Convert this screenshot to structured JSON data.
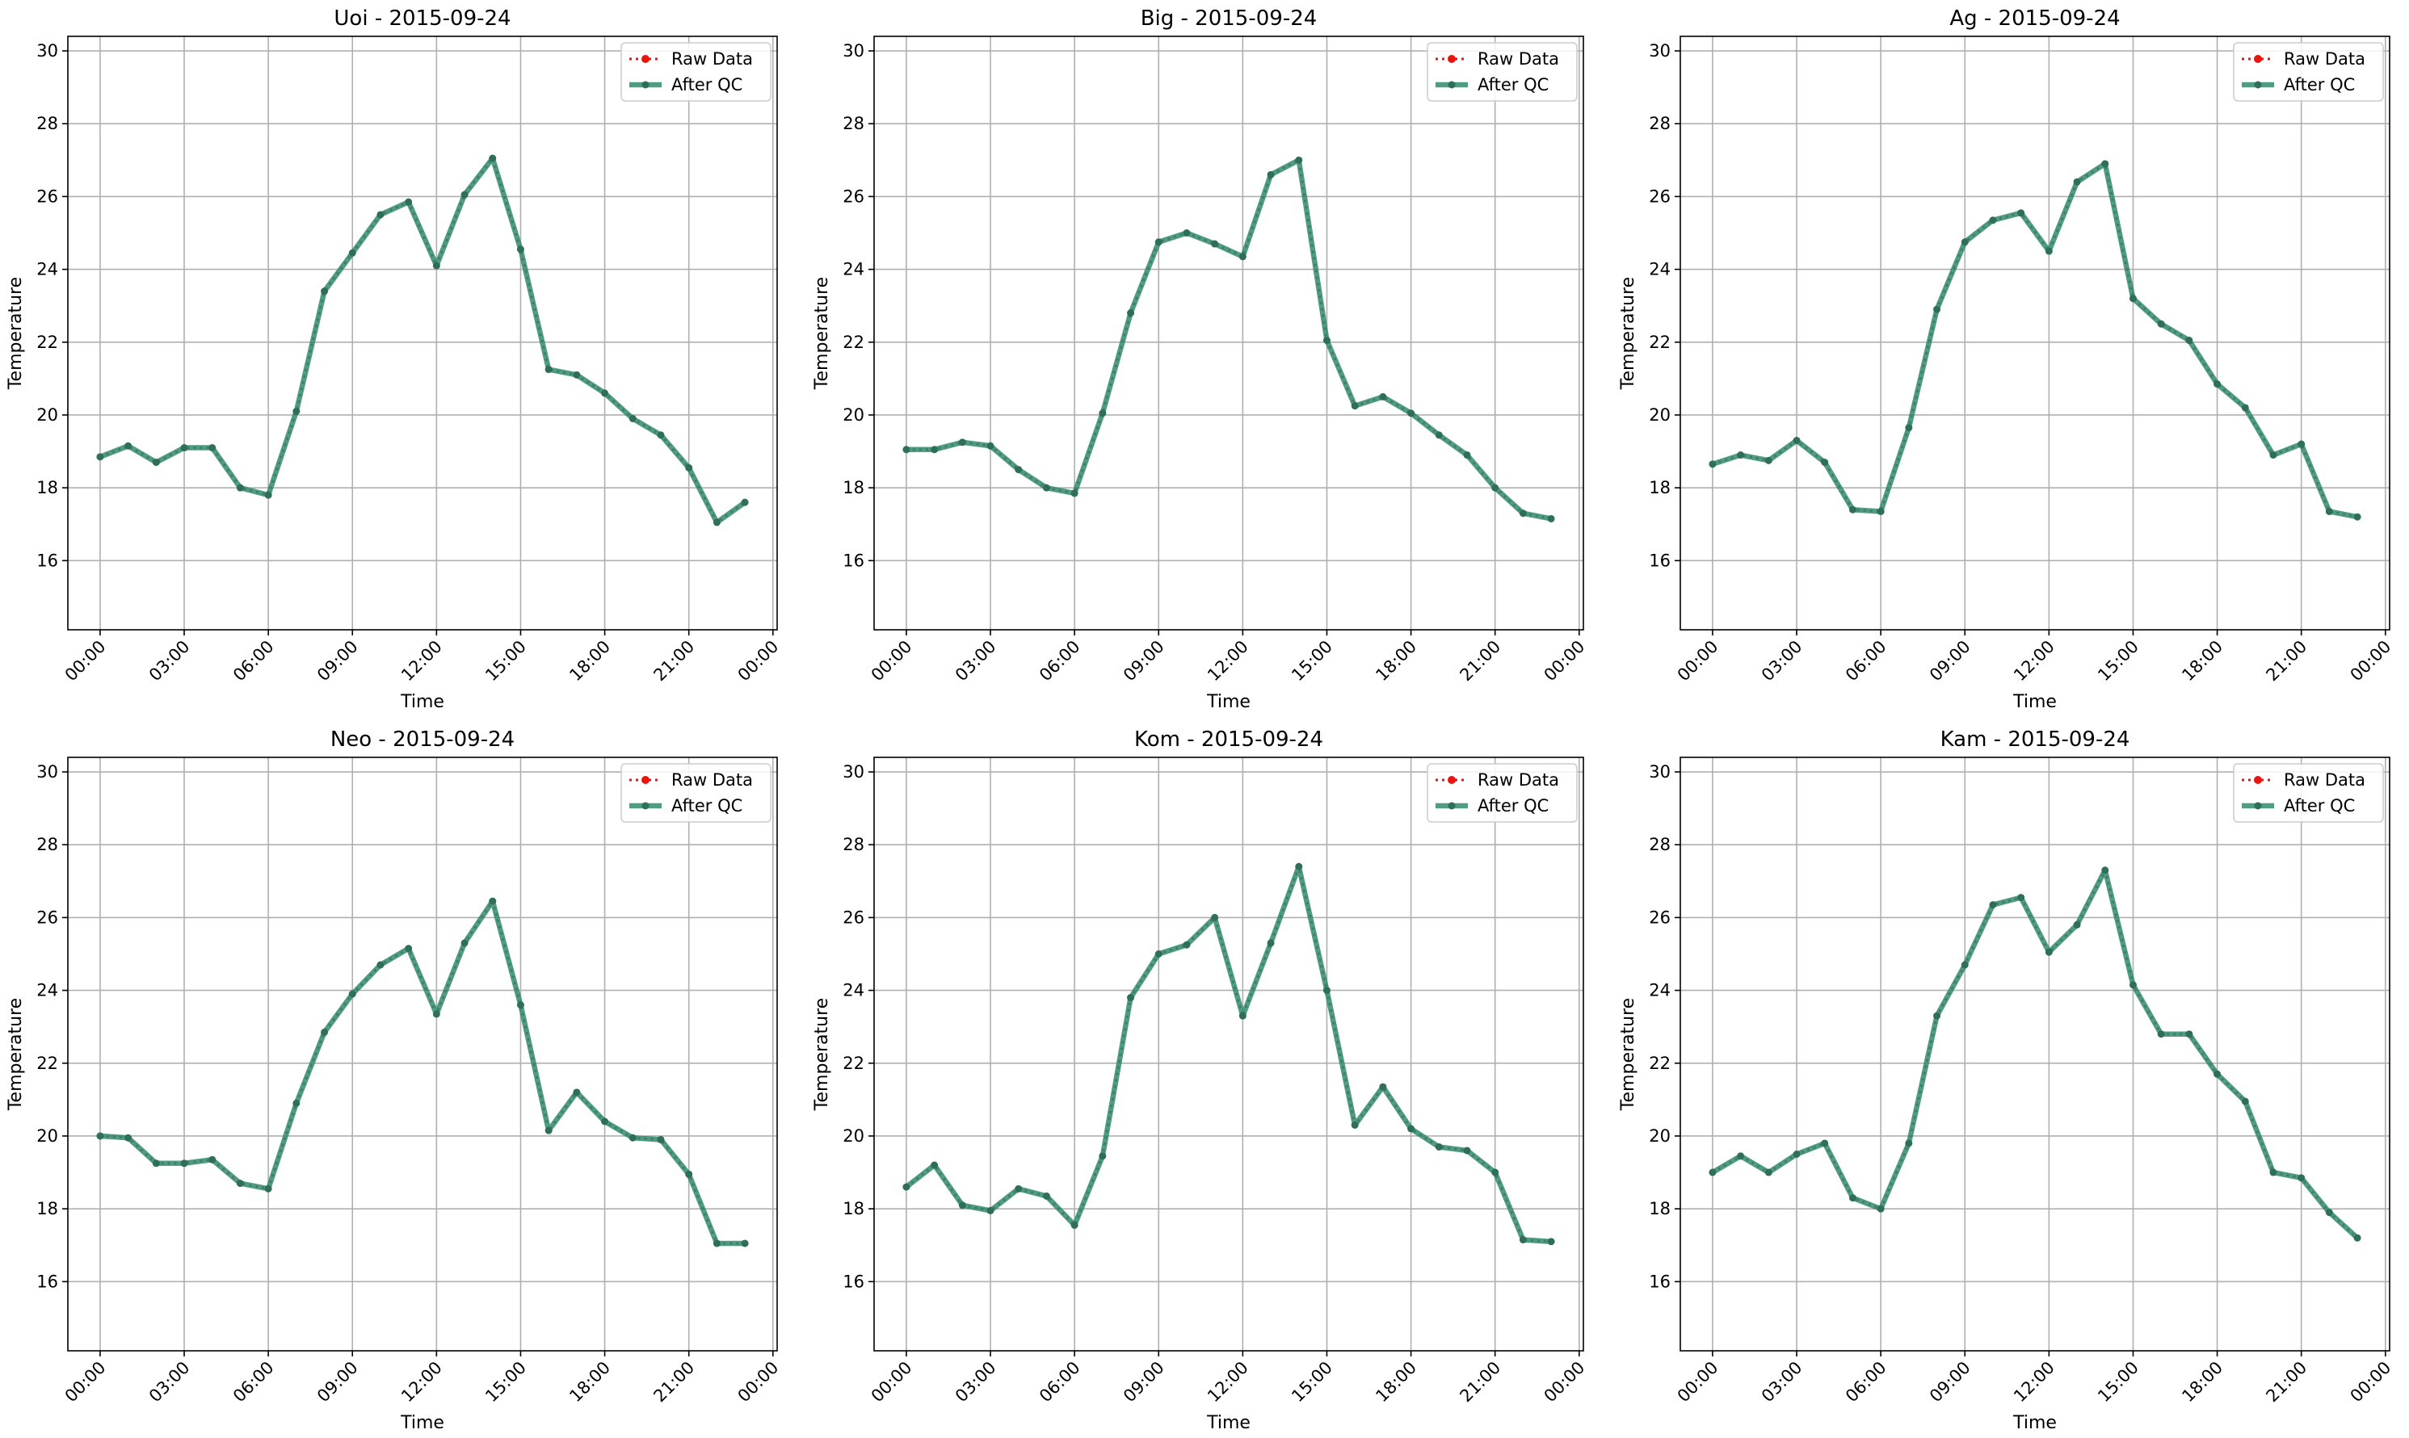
{
  "colors": {
    "raw": "#e8150f",
    "qc": "#2e8b6e",
    "grid": "#b0b0b0",
    "axes": "#000000"
  },
  "chart_data": [
    {
      "type": "line",
      "title": "Uoi - 2015-09-24",
      "xlabel": "Time",
      "ylabel": "Temperature",
      "x_ticks": [
        "00:00",
        "03:00",
        "06:00",
        "09:00",
        "12:00",
        "15:00",
        "18:00",
        "21:00",
        "00:00"
      ],
      "x_tick_hours": [
        0,
        3,
        6,
        9,
        12,
        15,
        18,
        21,
        24
      ],
      "xlim": [
        -1.15,
        24.15
      ],
      "ylim": [
        14.1,
        30.4
      ],
      "y_ticks": [
        16,
        18,
        20,
        22,
        24,
        26,
        28,
        30
      ],
      "grid": true,
      "legend": "top-right",
      "legend_entries": [
        "Raw Data",
        "After QC"
      ],
      "x": [
        0,
        1,
        2,
        3,
        4,
        5,
        6,
        7,
        8,
        9,
        10,
        11,
        12,
        13,
        14,
        15,
        16,
        17,
        18,
        19,
        20,
        21,
        22,
        23
      ],
      "series": [
        {
          "name": "Raw Data",
          "values": [
            18.85,
            19.15,
            18.7,
            19.1,
            19.1,
            18.0,
            17.8,
            20.1,
            23.4,
            24.45,
            25.5,
            25.85,
            24.1,
            26.05,
            27.05,
            24.55,
            21.25,
            21.1,
            20.6,
            19.9,
            19.45,
            18.55,
            17.05,
            17.6
          ]
        },
        {
          "name": "After QC",
          "values": [
            18.85,
            19.15,
            18.7,
            19.1,
            19.1,
            18.0,
            17.8,
            20.1,
            23.4,
            24.45,
            25.5,
            25.85,
            24.1,
            26.05,
            27.05,
            24.55,
            21.25,
            21.1,
            20.6,
            19.9,
            19.45,
            18.55,
            17.05,
            17.6
          ]
        }
      ]
    },
    {
      "type": "line",
      "title": "Big - 2015-09-24",
      "xlabel": "Time",
      "ylabel": "Temperature",
      "x_ticks": [
        "00:00",
        "03:00",
        "06:00",
        "09:00",
        "12:00",
        "15:00",
        "18:00",
        "21:00",
        "00:00"
      ],
      "x_tick_hours": [
        0,
        3,
        6,
        9,
        12,
        15,
        18,
        21,
        24
      ],
      "xlim": [
        -1.15,
        24.15
      ],
      "ylim": [
        14.1,
        30.4
      ],
      "y_ticks": [
        16,
        18,
        20,
        22,
        24,
        26,
        28,
        30
      ],
      "grid": true,
      "legend": "top-right",
      "legend_entries": [
        "Raw Data",
        "After QC"
      ],
      "x": [
        0,
        1,
        2,
        3,
        4,
        5,
        6,
        7,
        8,
        9,
        10,
        11,
        12,
        13,
        14,
        15,
        16,
        17,
        18,
        19,
        20,
        21,
        22,
        23
      ],
      "series": [
        {
          "name": "Raw Data",
          "values": [
            19.05,
            19.05,
            19.25,
            19.15,
            18.5,
            18.0,
            17.85,
            20.05,
            22.8,
            24.75,
            25.0,
            24.7,
            24.35,
            26.6,
            27.0,
            22.05,
            20.25,
            20.5,
            20.05,
            19.45,
            18.9,
            18.0,
            17.3,
            17.15
          ]
        },
        {
          "name": "After QC",
          "values": [
            19.05,
            19.05,
            19.25,
            19.15,
            18.5,
            18.0,
            17.85,
            20.05,
            22.8,
            24.75,
            25.0,
            24.7,
            24.35,
            26.6,
            27.0,
            22.05,
            20.25,
            20.5,
            20.05,
            19.45,
            18.9,
            18.0,
            17.3,
            17.15
          ]
        }
      ]
    },
    {
      "type": "line",
      "title": "Ag - 2015-09-24",
      "xlabel": "Time",
      "ylabel": "Temperature",
      "x_ticks": [
        "00:00",
        "03:00",
        "06:00",
        "09:00",
        "12:00",
        "15:00",
        "18:00",
        "21:00",
        "00:00"
      ],
      "x_tick_hours": [
        0,
        3,
        6,
        9,
        12,
        15,
        18,
        21,
        24
      ],
      "xlim": [
        -1.15,
        24.15
      ],
      "ylim": [
        14.1,
        30.4
      ],
      "y_ticks": [
        16,
        18,
        20,
        22,
        24,
        26,
        28,
        30
      ],
      "grid": true,
      "legend": "top-right",
      "legend_entries": [
        "Raw Data",
        "After QC"
      ],
      "x": [
        0,
        1,
        2,
        3,
        4,
        5,
        6,
        7,
        8,
        9,
        10,
        11,
        12,
        13,
        14,
        15,
        16,
        17,
        18,
        19,
        20,
        21,
        22,
        23
      ],
      "series": [
        {
          "name": "Raw Data",
          "values": [
            18.65,
            18.9,
            18.75,
            19.3,
            18.7,
            17.4,
            17.35,
            19.65,
            22.9,
            24.75,
            25.35,
            25.55,
            24.5,
            26.4,
            26.9,
            23.2,
            22.5,
            22.05,
            20.85,
            20.2,
            18.9,
            19.2,
            17.35,
            17.2
          ]
        },
        {
          "name": "After QC",
          "values": [
            18.65,
            18.9,
            18.75,
            19.3,
            18.7,
            17.4,
            17.35,
            19.65,
            22.9,
            24.75,
            25.35,
            25.55,
            24.5,
            26.4,
            26.9,
            23.2,
            22.5,
            22.05,
            20.85,
            20.2,
            18.9,
            19.2,
            17.35,
            17.2
          ]
        }
      ]
    },
    {
      "type": "line",
      "title": "Neo - 2015-09-24",
      "xlabel": "Time",
      "ylabel": "Temperature",
      "x_ticks": [
        "00:00",
        "03:00",
        "06:00",
        "09:00",
        "12:00",
        "15:00",
        "18:00",
        "21:00",
        "00:00"
      ],
      "x_tick_hours": [
        0,
        3,
        6,
        9,
        12,
        15,
        18,
        21,
        24
      ],
      "xlim": [
        -1.15,
        24.15
      ],
      "ylim": [
        14.1,
        30.4
      ],
      "y_ticks": [
        16,
        18,
        20,
        22,
        24,
        26,
        28,
        30
      ],
      "grid": true,
      "legend": "top-right",
      "legend_entries": [
        "Raw Data",
        "After QC"
      ],
      "x": [
        0,
        1,
        2,
        3,
        4,
        5,
        6,
        7,
        8,
        9,
        10,
        11,
        12,
        13,
        14,
        15,
        16,
        17,
        18,
        19,
        20,
        21,
        22,
        23
      ],
      "series": [
        {
          "name": "Raw Data",
          "values": [
            20.0,
            19.95,
            19.25,
            19.25,
            19.35,
            18.7,
            18.55,
            20.9,
            22.85,
            23.9,
            24.7,
            25.15,
            23.35,
            25.3,
            26.45,
            23.6,
            20.15,
            21.2,
            20.4,
            19.95,
            19.9,
            18.95,
            17.05,
            17.05
          ]
        },
        {
          "name": "After QC",
          "values": [
            20.0,
            19.95,
            19.25,
            19.25,
            19.35,
            18.7,
            18.55,
            20.9,
            22.85,
            23.9,
            24.7,
            25.15,
            23.35,
            25.3,
            26.45,
            23.6,
            20.15,
            21.2,
            20.4,
            19.95,
            19.9,
            18.95,
            17.05,
            17.05
          ]
        }
      ]
    },
    {
      "type": "line",
      "title": "Kom - 2015-09-24",
      "xlabel": "Time",
      "ylabel": "Temperature",
      "x_ticks": [
        "00:00",
        "03:00",
        "06:00",
        "09:00",
        "12:00",
        "15:00",
        "18:00",
        "21:00",
        "00:00"
      ],
      "x_tick_hours": [
        0,
        3,
        6,
        9,
        12,
        15,
        18,
        21,
        24
      ],
      "xlim": [
        -1.15,
        24.15
      ],
      "ylim": [
        14.1,
        30.4
      ],
      "y_ticks": [
        16,
        18,
        20,
        22,
        24,
        26,
        28,
        30
      ],
      "grid": true,
      "legend": "top-right",
      "legend_entries": [
        "Raw Data",
        "After QC"
      ],
      "x": [
        0,
        1,
        2,
        3,
        4,
        5,
        6,
        7,
        8,
        9,
        10,
        11,
        12,
        13,
        14,
        15,
        16,
        17,
        18,
        19,
        20,
        21,
        22,
        23
      ],
      "series": [
        {
          "name": "Raw Data",
          "values": [
            18.6,
            19.2,
            18.1,
            17.95,
            18.55,
            18.35,
            17.55,
            19.45,
            23.8,
            25.0,
            25.25,
            26.0,
            23.3,
            25.3,
            27.4,
            24.0,
            20.3,
            21.35,
            20.2,
            19.7,
            19.6,
            19.0,
            17.15,
            17.1
          ]
        },
        {
          "name": "After QC",
          "values": [
            18.6,
            19.2,
            18.1,
            17.95,
            18.55,
            18.35,
            17.55,
            19.45,
            23.8,
            25.0,
            25.25,
            26.0,
            23.3,
            25.3,
            27.4,
            24.0,
            20.3,
            21.35,
            20.2,
            19.7,
            19.6,
            19.0,
            17.15,
            17.1
          ]
        }
      ]
    },
    {
      "type": "line",
      "title": "Kam - 2015-09-24",
      "xlabel": "Time",
      "ylabel": "Temperature",
      "x_ticks": [
        "00:00",
        "03:00",
        "06:00",
        "09:00",
        "12:00",
        "15:00",
        "18:00",
        "21:00",
        "00:00"
      ],
      "x_tick_hours": [
        0,
        3,
        6,
        9,
        12,
        15,
        18,
        21,
        24
      ],
      "xlim": [
        -1.15,
        24.15
      ],
      "ylim": [
        14.1,
        30.4
      ],
      "y_ticks": [
        16,
        18,
        20,
        22,
        24,
        26,
        28,
        30
      ],
      "grid": true,
      "legend": "top-right",
      "legend_entries": [
        "Raw Data",
        "After QC"
      ],
      "x": [
        0,
        1,
        2,
        3,
        4,
        5,
        6,
        7,
        8,
        9,
        10,
        11,
        12,
        13,
        14,
        15,
        16,
        17,
        18,
        19,
        20,
        21,
        22,
        23
      ],
      "series": [
        {
          "name": "Raw Data",
          "values": [
            19.0,
            19.45,
            19.0,
            19.5,
            19.8,
            18.3,
            18.0,
            19.8,
            23.3,
            24.7,
            26.35,
            26.55,
            25.05,
            25.8,
            27.3,
            24.15,
            22.8,
            22.8,
            21.7,
            20.95,
            19.0,
            18.85,
            17.9,
            17.2
          ]
        },
        {
          "name": "After QC",
          "values": [
            19.0,
            19.45,
            19.0,
            19.5,
            19.8,
            18.3,
            18.0,
            19.8,
            23.3,
            24.7,
            26.35,
            26.55,
            25.05,
            25.8,
            27.3,
            24.15,
            22.8,
            22.8,
            21.7,
            20.95,
            19.0,
            18.85,
            17.9,
            17.2
          ]
        }
      ]
    }
  ]
}
